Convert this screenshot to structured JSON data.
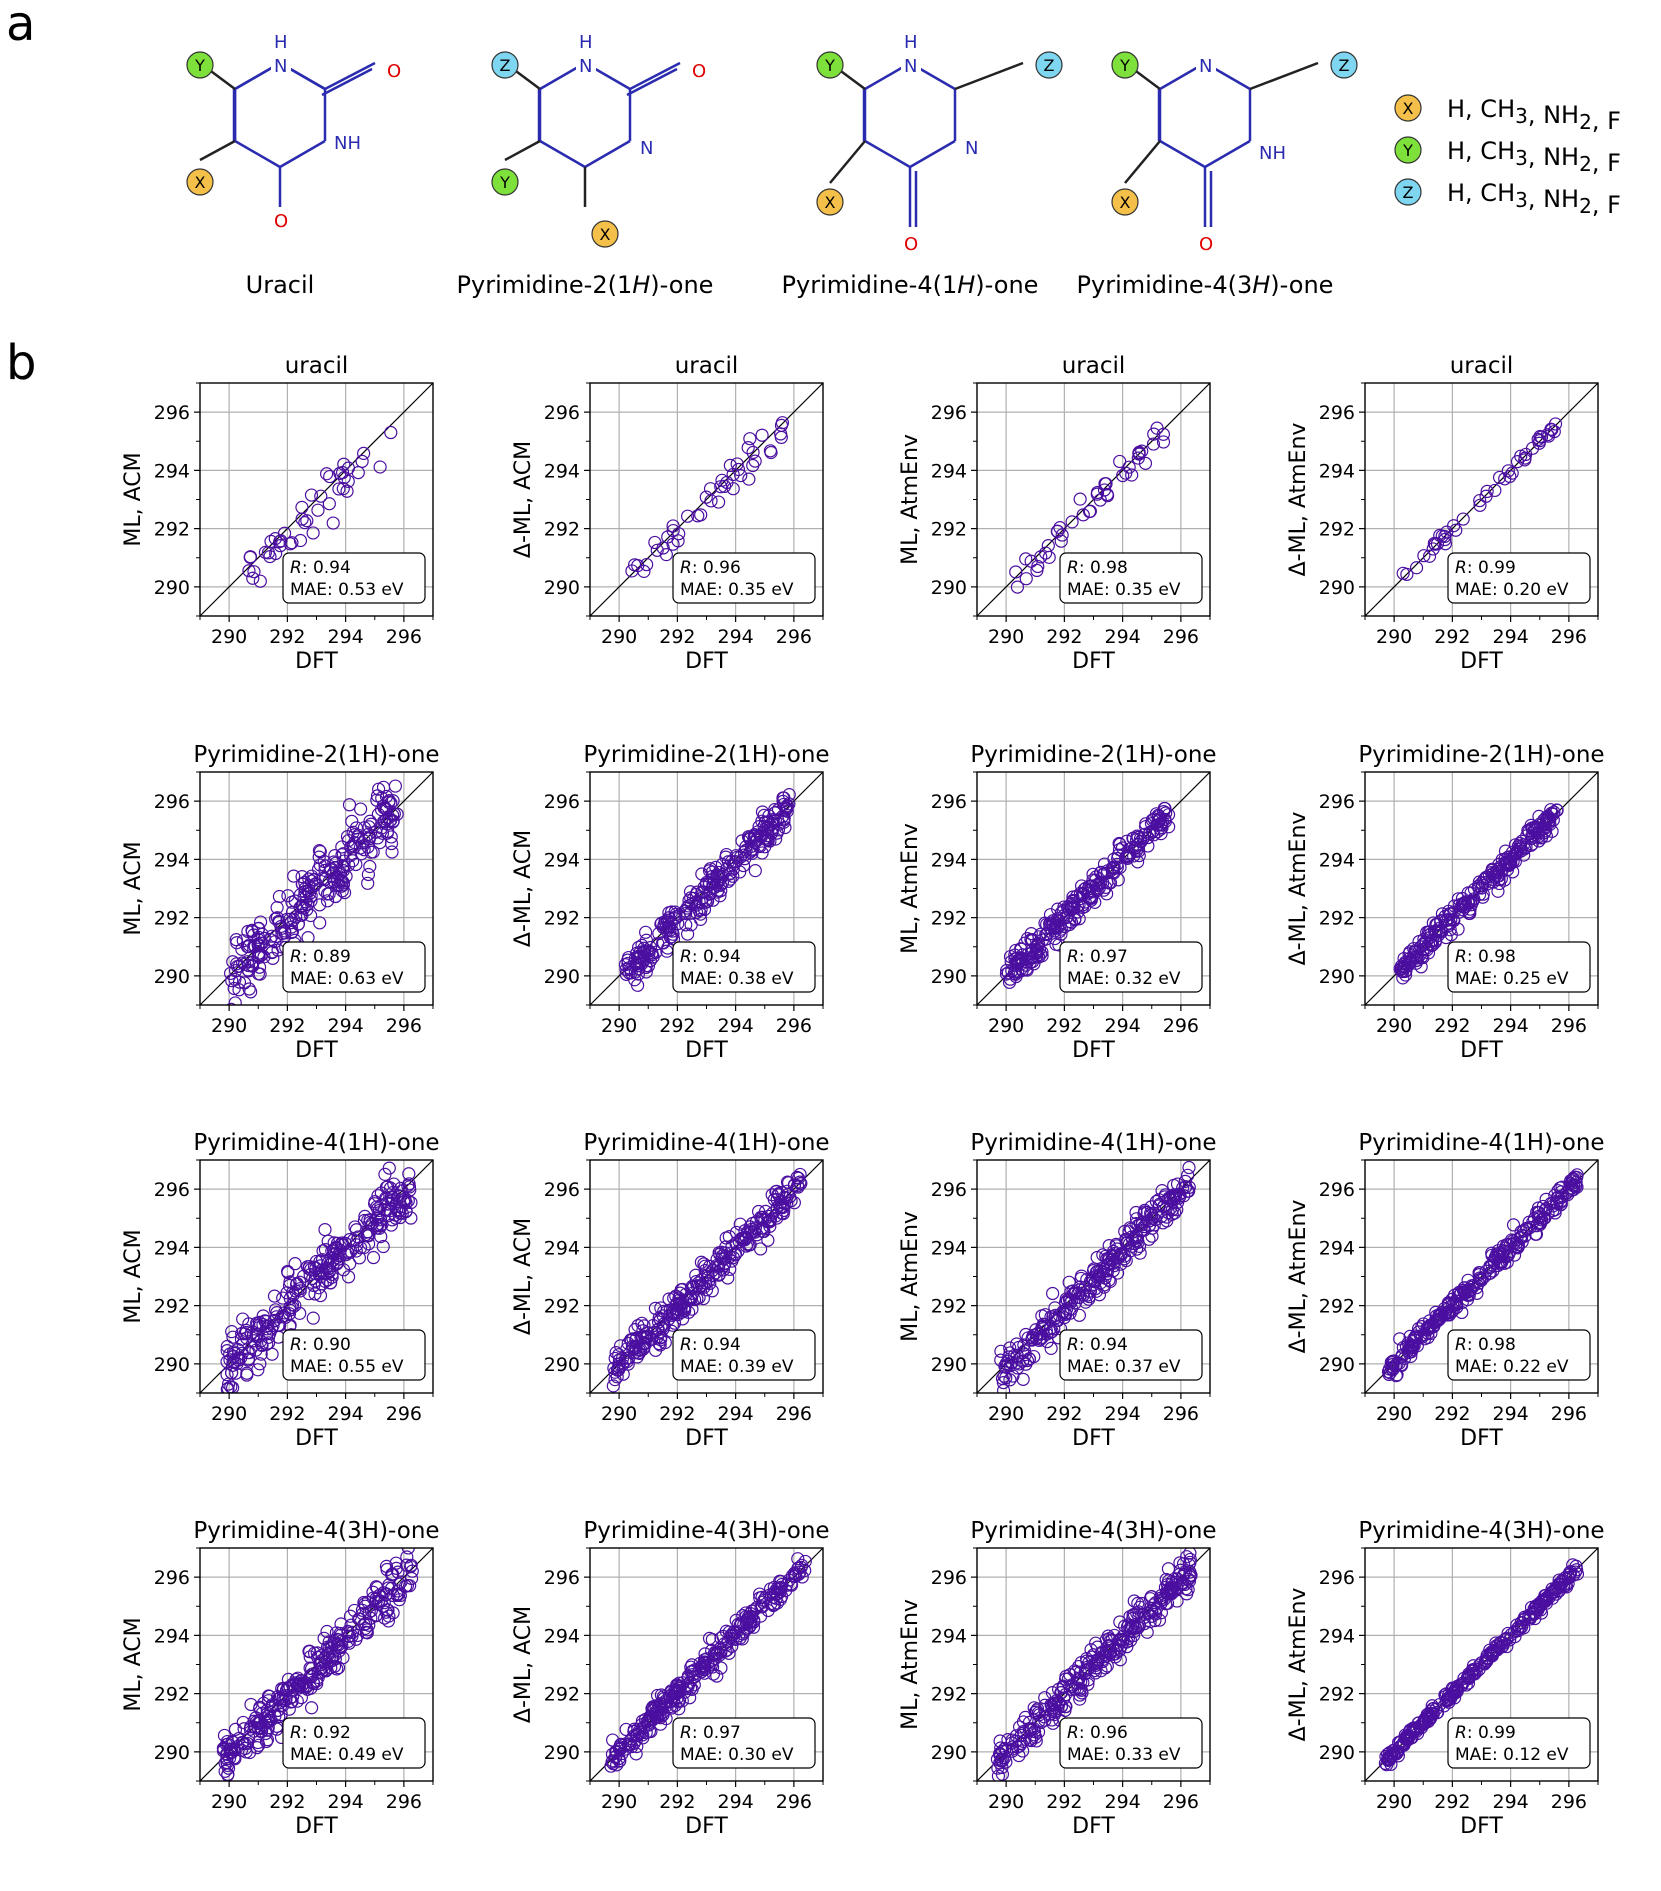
{
  "panel_a": {
    "letter": "a",
    "molecules": [
      {
        "name": "Uracil",
        "atoms": {
          "n1": "H",
          "n1b": "N",
          "n3": "NH",
          "o2": "O",
          "o4": "O"
        },
        "subs": [
          "Y",
          "X"
        ]
      },
      {
        "name_parts": [
          "Pyrimidine-2(1",
          "H",
          ")-one"
        ],
        "subs": [
          "Z",
          "Y",
          "X"
        ]
      },
      {
        "name_parts": [
          "Pyrimidine-4(1",
          "H",
          ")-one"
        ],
        "subs": [
          "Y",
          "X",
          "Z"
        ]
      },
      {
        "name_parts": [
          "Pyrimidine-4(3",
          "H",
          ")-one"
        ],
        "subs": [
          "Y",
          "X",
          "Z"
        ]
      }
    ],
    "atom_labels": {
      "H": "H",
      "N": "N",
      "NH": "NH",
      "O": "O"
    },
    "legend": [
      {
        "sym": "X",
        "text": "H, CH3, NH2, F",
        "color": "#f5c04a"
      },
      {
        "sym": "Y",
        "text": "H, CH3, NH2, F",
        "color": "#7ee03a"
      },
      {
        "sym": "Z",
        "text": "H, CH3, NH2, F",
        "color": "#7fd6f0"
      }
    ]
  },
  "panel_b": {
    "letter": "b",
    "xlabel": "DFT",
    "ticks": [
      290,
      292,
      294,
      296
    ],
    "lim": [
      289,
      297
    ],
    "marker_color": "#4b0fa0",
    "rows": [
      "uracil",
      "Pyrimidine-2(1H)-one",
      "Pyrimidine-4(1H)-one",
      "Pyrimidine-4(3H)-one"
    ],
    "cols": [
      "ML, ACM",
      "Δ-ML, ACM",
      "ML, AtmEnv",
      "Δ-ML, AtmEnv"
    ],
    "r_label": "R",
    "mae_prefix": "MAE: ",
    "mae_unit": " eV"
  },
  "chart_data": [
    {
      "type": "scatter",
      "title": "uracil",
      "xlabel": "DFT",
      "ylabel": "ML, ACM",
      "R": "0.94",
      "MAE": "0.53",
      "xlim": [
        289,
        297
      ],
      "ylim": [
        289,
        297
      ],
      "range": [
        290.2,
        295.7
      ],
      "spread": 0.55,
      "n": 45,
      "bias": -0.3
    },
    {
      "type": "scatter",
      "title": "uracil",
      "xlabel": "DFT",
      "ylabel": "Δ-ML, ACM",
      "R": "0.96",
      "MAE": "0.35",
      "xlim": [
        289,
        297
      ],
      "ylim": [
        289,
        297
      ],
      "range": [
        290.3,
        295.7
      ],
      "spread": 0.4,
      "n": 45,
      "bias": -0.15
    },
    {
      "type": "scatter",
      "title": "uracil",
      "xlabel": "DFT",
      "ylabel": "ML, AtmEnv",
      "R": "0.98",
      "MAE": "0.35",
      "xlim": [
        289,
        297
      ],
      "ylim": [
        289,
        297
      ],
      "range": [
        290.3,
        295.6
      ],
      "spread": 0.35,
      "n": 45,
      "bias": -0.1
    },
    {
      "type": "scatter",
      "title": "uracil",
      "xlabel": "DFT",
      "ylabel": "Δ-ML, AtmEnv",
      "R": "0.99",
      "MAE": "0.20",
      "xlim": [
        289,
        297
      ],
      "ylim": [
        289,
        297
      ],
      "range": [
        290.3,
        295.6
      ],
      "spread": 0.18,
      "n": 45,
      "bias": 0
    },
    {
      "type": "scatter",
      "title": "Pyrimidine-2(1H)-one",
      "xlabel": "DFT",
      "ylabel": "ML, ACM",
      "R": "0.89",
      "MAE": "0.63",
      "xlim": [
        289,
        297
      ],
      "ylim": [
        289,
        297
      ],
      "range": [
        290.0,
        295.8
      ],
      "spread": 0.75,
      "n": 260,
      "bias": -0.1
    },
    {
      "type": "scatter",
      "title": "Pyrimidine-2(1H)-one",
      "xlabel": "DFT",
      "ylabel": "Δ-ML, ACM",
      "R": "0.94",
      "MAE": "0.38",
      "xlim": [
        289,
        297
      ],
      "ylim": [
        289,
        297
      ],
      "range": [
        290.2,
        295.9
      ],
      "spread": 0.45,
      "n": 260,
      "bias": -0.1
    },
    {
      "type": "scatter",
      "title": "Pyrimidine-2(1H)-one",
      "xlabel": "DFT",
      "ylabel": "ML, AtmEnv",
      "R": "0.97",
      "MAE": "0.32",
      "xlim": [
        289,
        297
      ],
      "ylim": [
        289,
        297
      ],
      "range": [
        290.0,
        295.6
      ],
      "spread": 0.38,
      "n": 260,
      "bias": 0
    },
    {
      "type": "scatter",
      "title": "Pyrimidine-2(1H)-one",
      "xlabel": "DFT",
      "ylabel": "Δ-ML, AtmEnv",
      "R": "0.98",
      "MAE": "0.25",
      "xlim": [
        289,
        297
      ],
      "ylim": [
        289,
        297
      ],
      "range": [
        290.2,
        295.6
      ],
      "spread": 0.28,
      "n": 260,
      "bias": 0
    },
    {
      "type": "scatter",
      "title": "Pyrimidine-4(1H)-one",
      "xlabel": "DFT",
      "ylabel": "ML, ACM",
      "R": "0.90",
      "MAE": "0.55",
      "xlim": [
        289,
        297
      ],
      "ylim": [
        289,
        297
      ],
      "range": [
        289.9,
        296.3
      ],
      "spread": 0.65,
      "n": 280,
      "bias": -0.1
    },
    {
      "type": "scatter",
      "title": "Pyrimidine-4(1H)-one",
      "xlabel": "DFT",
      "ylabel": "Δ-ML, ACM",
      "R": "0.94",
      "MAE": "0.39",
      "xlim": [
        289,
        297
      ],
      "ylim": [
        289,
        297
      ],
      "range": [
        289.8,
        296.3
      ],
      "spread": 0.45,
      "n": 280,
      "bias": -0.05
    },
    {
      "type": "scatter",
      "title": "Pyrimidine-4(1H)-one",
      "xlabel": "DFT",
      "ylabel": "ML, AtmEnv",
      "R": "0.94",
      "MAE": "0.37",
      "xlim": [
        289,
        297
      ],
      "ylim": [
        289,
        297
      ],
      "range": [
        289.8,
        296.3
      ],
      "spread": 0.45,
      "n": 280,
      "bias": -0.1
    },
    {
      "type": "scatter",
      "title": "Pyrimidine-4(1H)-one",
      "xlabel": "DFT",
      "ylabel": "Δ-ML, AtmEnv",
      "R": "0.98",
      "MAE": "0.22",
      "xlim": [
        289,
        297
      ],
      "ylim": [
        289,
        297
      ],
      "range": [
        289.8,
        296.3
      ],
      "spread": 0.25,
      "n": 280,
      "bias": 0
    },
    {
      "type": "scatter",
      "title": "Pyrimidine-4(3H)-one",
      "xlabel": "DFT",
      "ylabel": "ML, ACM",
      "R": "0.92",
      "MAE": "0.49",
      "xlim": [
        289,
        297
      ],
      "ylim": [
        289,
        297
      ],
      "range": [
        289.8,
        296.3
      ],
      "spread": 0.55,
      "n": 300,
      "bias": -0.05
    },
    {
      "type": "scatter",
      "title": "Pyrimidine-4(3H)-one",
      "xlabel": "DFT",
      "ylabel": "Δ-ML, ACM",
      "R": "0.97",
      "MAE": "0.30",
      "xlim": [
        289,
        297
      ],
      "ylim": [
        289,
        297
      ],
      "range": [
        289.7,
        296.4
      ],
      "spread": 0.32,
      "n": 300,
      "bias": 0
    },
    {
      "type": "scatter",
      "title": "Pyrimidine-4(3H)-one",
      "xlabel": "DFT",
      "ylabel": "ML, AtmEnv",
      "R": "0.96",
      "MAE": "0.33",
      "xlim": [
        289,
        297
      ],
      "ylim": [
        289,
        297
      ],
      "range": [
        289.7,
        296.4
      ],
      "spread": 0.4,
      "n": 300,
      "bias": -0.05
    },
    {
      "type": "scatter",
      "title": "Pyrimidine-4(3H)-one",
      "xlabel": "DFT",
      "ylabel": "Δ-ML, AtmEnv",
      "R": "0.99",
      "MAE": "0.12",
      "xlim": [
        289,
        297
      ],
      "ylim": [
        289,
        297
      ],
      "range": [
        289.7,
        296.3
      ],
      "spread": 0.14,
      "n": 300,
      "bias": 0
    }
  ]
}
